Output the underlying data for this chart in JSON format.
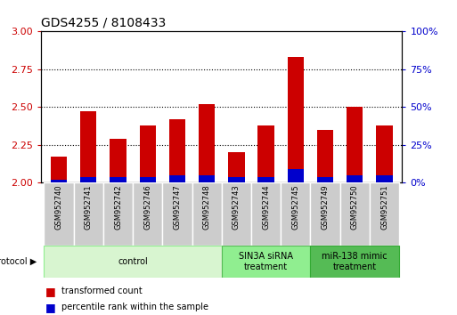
{
  "title": "GDS4255 / 8108433",
  "samples": [
    "GSM952740",
    "GSM952741",
    "GSM952742",
    "GSM952746",
    "GSM952747",
    "GSM952748",
    "GSM952743",
    "GSM952744",
    "GSM952745",
    "GSM952749",
    "GSM952750",
    "GSM952751"
  ],
  "red_values": [
    2.17,
    2.47,
    2.29,
    2.38,
    2.42,
    2.52,
    2.2,
    2.38,
    2.83,
    2.35,
    2.5,
    2.38
  ],
  "blue_values": [
    0.02,
    0.04,
    0.04,
    0.04,
    0.05,
    0.05,
    0.04,
    0.04,
    0.09,
    0.04,
    0.05,
    0.05
  ],
  "ylim_left": [
    2.0,
    3.0
  ],
  "ylim_right": [
    0,
    100
  ],
  "yticks_left": [
    2.0,
    2.25,
    2.5,
    2.75,
    3.0
  ],
  "yticks_right": [
    0,
    25,
    50,
    75,
    100
  ],
  "red_color": "#cc0000",
  "blue_color": "#0000cc",
  "bar_width": 0.55,
  "bg_color": "#ffffff",
  "left_tick_color": "#cc0000",
  "right_tick_color": "#0000cc",
  "sample_box_color": "#cccccc",
  "control_color": "#d8f5d0",
  "sinrna_color": "#90ee90",
  "mimic_color": "#55bb55",
  "groups": [
    {
      "label": "control",
      "start": 0,
      "end": 5
    },
    {
      "label": "SIN3A siRNA\ntreatment",
      "start": 6,
      "end": 8
    },
    {
      "label": "miR-138 mimic\ntreatment",
      "start": 9,
      "end": 11
    }
  ],
  "group_colors": [
    "#d8f5d0",
    "#90ee90",
    "#55bb55"
  ],
  "group_edge_colors": [
    "#90ee90",
    "#55bb55",
    "#33aa33"
  ]
}
